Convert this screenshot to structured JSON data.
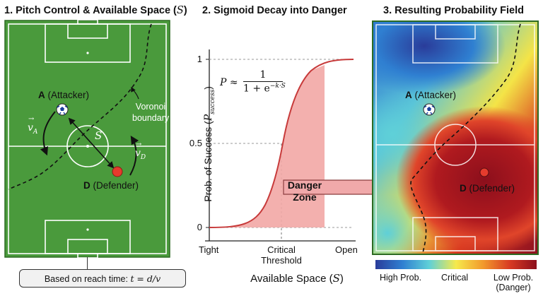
{
  "panel1": {
    "title": "1. Pitch Control & Available Space (",
    "title_math": "S",
    "title_end": ")",
    "attacker_letter": "A",
    "attacker_role": "(Attacker)",
    "defender_letter": "D",
    "defender_role": "(Defender)",
    "vA": "v",
    "vA_sub": "A",
    "vD": "v",
    "vD_sub": "D",
    "space_label": "S",
    "voronoi_line1": "Voronoi",
    "voronoi_line2": "boundary",
    "note_text": "Based on reach time: ",
    "note_math": "t = d/v"
  },
  "panel2": {
    "title": "2. Sigmoid Decay into Danger",
    "formula_lhs": "P ≈",
    "formula_num": "1",
    "formula_den": "1 + e",
    "formula_exp": "−k·S",
    "ylabel_prefix": "Prob. of Success (",
    "ylabel_math": "P",
    "ylabel_sub": "success",
    "ylabel_suffix": ")",
    "y_ticks": [
      "0",
      "0.5",
      "1"
    ],
    "x_ticks": [
      "Tight",
      "Critical",
      "Threshold",
      "Open"
    ],
    "xlabel_prefix": "Available Space (",
    "xlabel_math": "S",
    "xlabel_suffix": ")",
    "danger_line1": "Danger",
    "danger_line2": "Zone"
  },
  "panel3": {
    "title": "3. Resulting Probability Field",
    "attacker_letter": "A",
    "attacker_role": "(Attacker)",
    "defender_letter": "D",
    "defender_role": "(Defender)",
    "legend_high": "High Prob.",
    "legend_critical": "Critical",
    "legend_low": "Low Prob.",
    "legend_low_sub": "(Danger)"
  },
  "colors": {
    "pitch_green": "#4a9a3c",
    "line_white": "#ffffff",
    "sigmoid_red": "#c73a3a",
    "danger_fill": "#f2a7a5",
    "arrow_pink": "#f0a9aa",
    "defender_red": "#e53b2d"
  },
  "icons": [
    "ball-icon",
    "defender-dot-icon",
    "arrow-icon"
  ]
}
